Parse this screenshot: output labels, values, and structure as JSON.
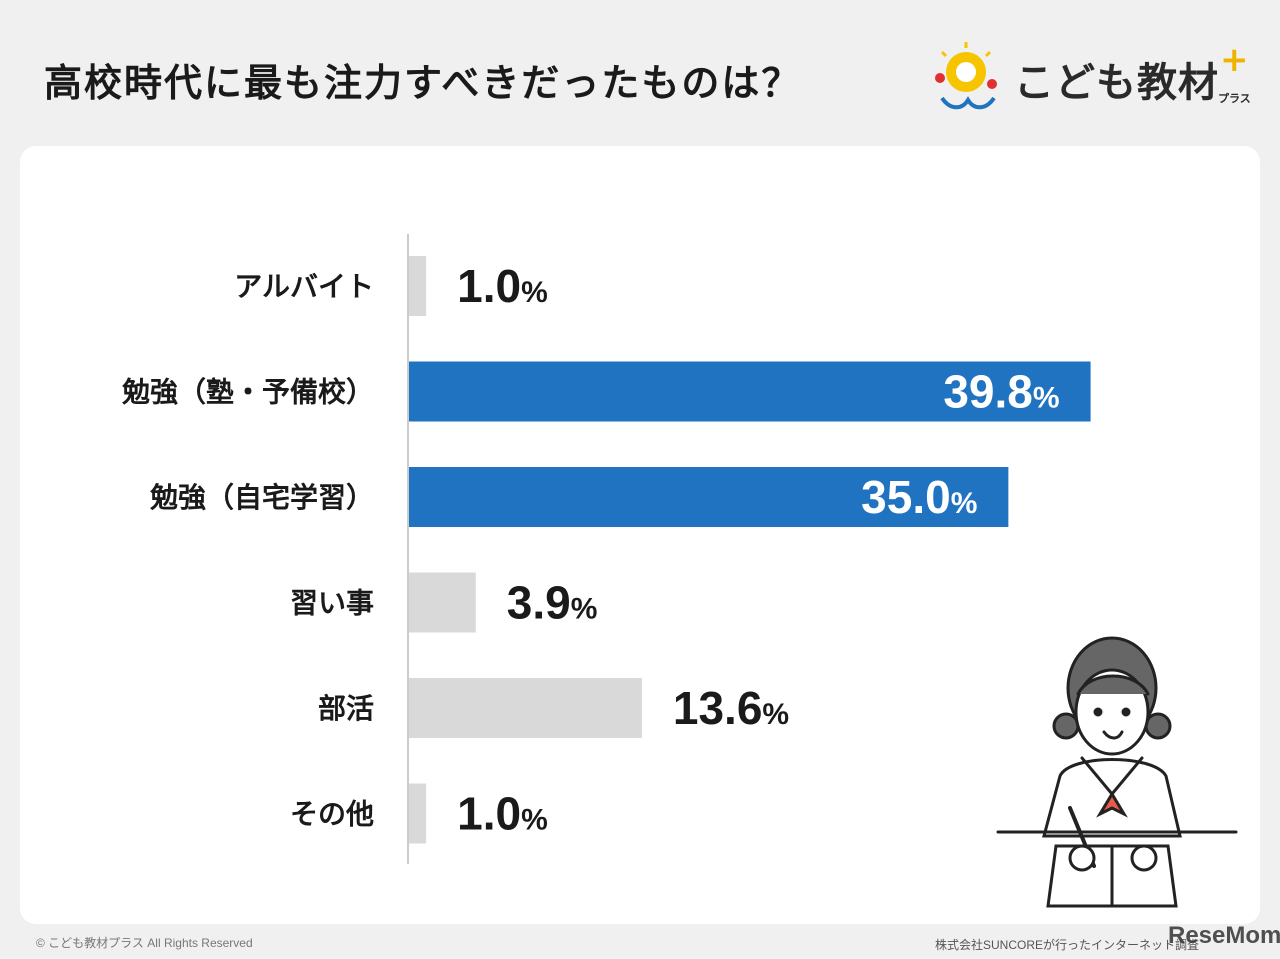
{
  "chart_data": {
    "type": "bar",
    "orientation": "horizontal",
    "title": "高校時代に最も注力すべきだったものは？",
    "categories": [
      "アルバイト",
      "勉強（塾・予備校）",
      "勉強（自宅学習）",
      "習い事",
      "部活",
      "その他"
    ],
    "values": [
      1.0,
      39.8,
      35.0,
      3.9,
      13.6,
      1.0
    ],
    "value_suffix": "%",
    "xlim": [
      0,
      40
    ],
    "grid": false,
    "colors": {
      "highlight": "#1f73c0",
      "normal": "#d9d9d9",
      "text": "#1a1a1a",
      "axis": "#cccccc"
    },
    "highlighted": [
      1,
      2
    ]
  },
  "logo": {
    "text": "こども教材",
    "sub": "プラス",
    "plus": "+"
  },
  "footer": {
    "copyright": "© こども教材プラス All Rights Reserved",
    "source": "株式会社SUNCOREが行ったインターネット調査",
    "watermark": "ReseMom"
  }
}
